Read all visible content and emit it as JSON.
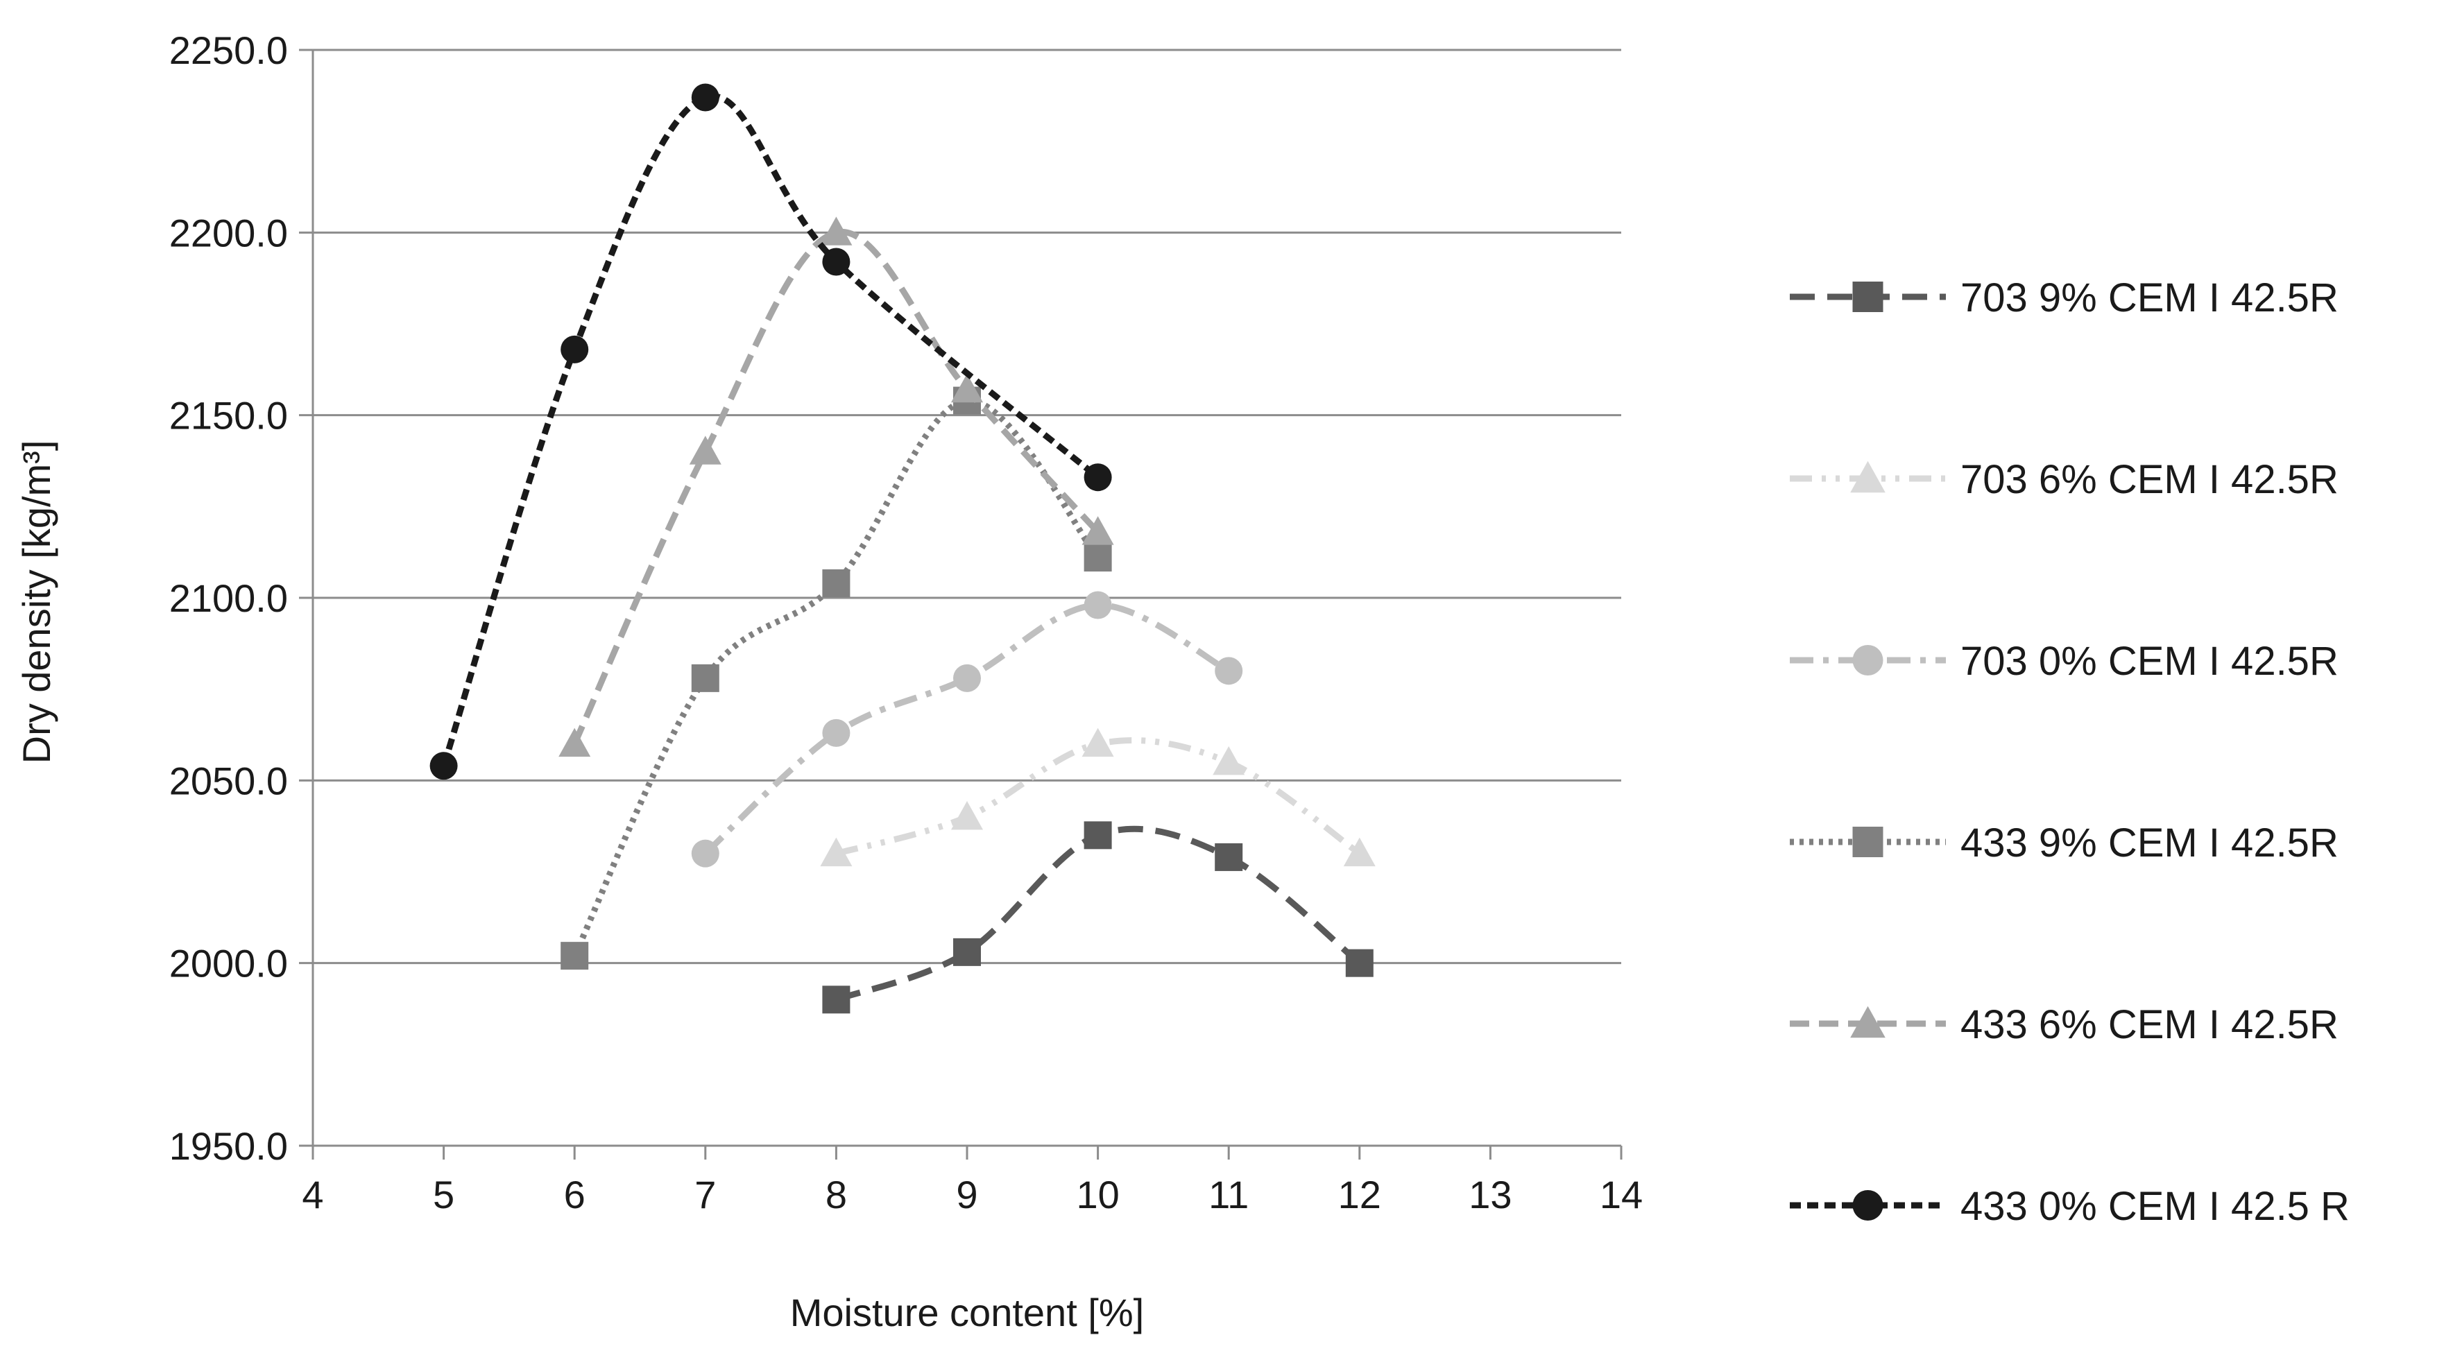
{
  "chart_data": {
    "type": "line",
    "title": "",
    "xlabel": "Moisture content [%]",
    "ylabel": "Dry density [kg/m³]",
    "xlim": [
      4,
      14
    ],
    "ylim": [
      1950,
      2250
    ],
    "xticks": [
      4,
      5,
      6,
      7,
      8,
      9,
      10,
      11,
      12,
      13,
      14
    ],
    "xtick_labels": [
      "4",
      "5",
      "6",
      "7",
      "8",
      "9",
      "10",
      "11",
      "12",
      "13",
      "14"
    ],
    "yticks": [
      1950,
      2000,
      2050,
      2100,
      2150,
      2200,
      2250
    ],
    "ytick_labels": [
      "1950.0",
      "2000.0",
      "2050.0",
      "2100.0",
      "2150.0",
      "2200.0",
      "2250.0"
    ],
    "grid": "horizontal",
    "legend_position": "right",
    "series": [
      {
        "name": "703 9% CEM I 42.5R",
        "color": "#595959",
        "marker": "square",
        "dash": "long-dash",
        "smooth": true,
        "x": [
          8,
          9,
          10,
          11,
          12
        ],
        "y": [
          1990,
          2003,
          2035,
          2029,
          2000
        ]
      },
      {
        "name": "703 6% CEM I 42.5R",
        "color": "#d9d9d9",
        "marker": "triangle",
        "dash": "long-dash-dot-dot",
        "smooth": true,
        "x": [
          8,
          9,
          10,
          11,
          12
        ],
        "y": [
          2030,
          2040,
          2060,
          2055,
          2030
        ]
      },
      {
        "name": "703 0% CEM I 42.5R",
        "color": "#bfbfbf",
        "marker": "circle",
        "dash": "long-dash-dot",
        "smooth": true,
        "x": [
          7,
          8,
          9,
          10,
          11
        ],
        "y": [
          2030,
          2063,
          2078,
          2098,
          2080
        ]
      },
      {
        "name": "433 9% CEM I 42.5R",
        "color": "#808080",
        "marker": "square",
        "dash": "dot",
        "smooth": true,
        "x": [
          6,
          7,
          8,
          9,
          10
        ],
        "y": [
          2002,
          2078,
          2104,
          2154,
          2111
        ]
      },
      {
        "name": "433 6% CEM I 42.5R",
        "color": "#a6a6a6",
        "marker": "triangle",
        "dash": "dash",
        "smooth": true,
        "x": [
          6,
          7,
          8,
          9,
          10
        ],
        "y": [
          2060,
          2140,
          2200,
          2157,
          2118
        ]
      },
      {
        "name": "433 0% CEM I 42.5 R",
        "color": "#1a1a1a",
        "marker": "circle",
        "dash": "short-dash",
        "smooth": true,
        "x": [
          5,
          6,
          7,
          8,
          10
        ],
        "y": [
          2054,
          2168,
          2237,
          2192,
          2133
        ]
      }
    ]
  }
}
